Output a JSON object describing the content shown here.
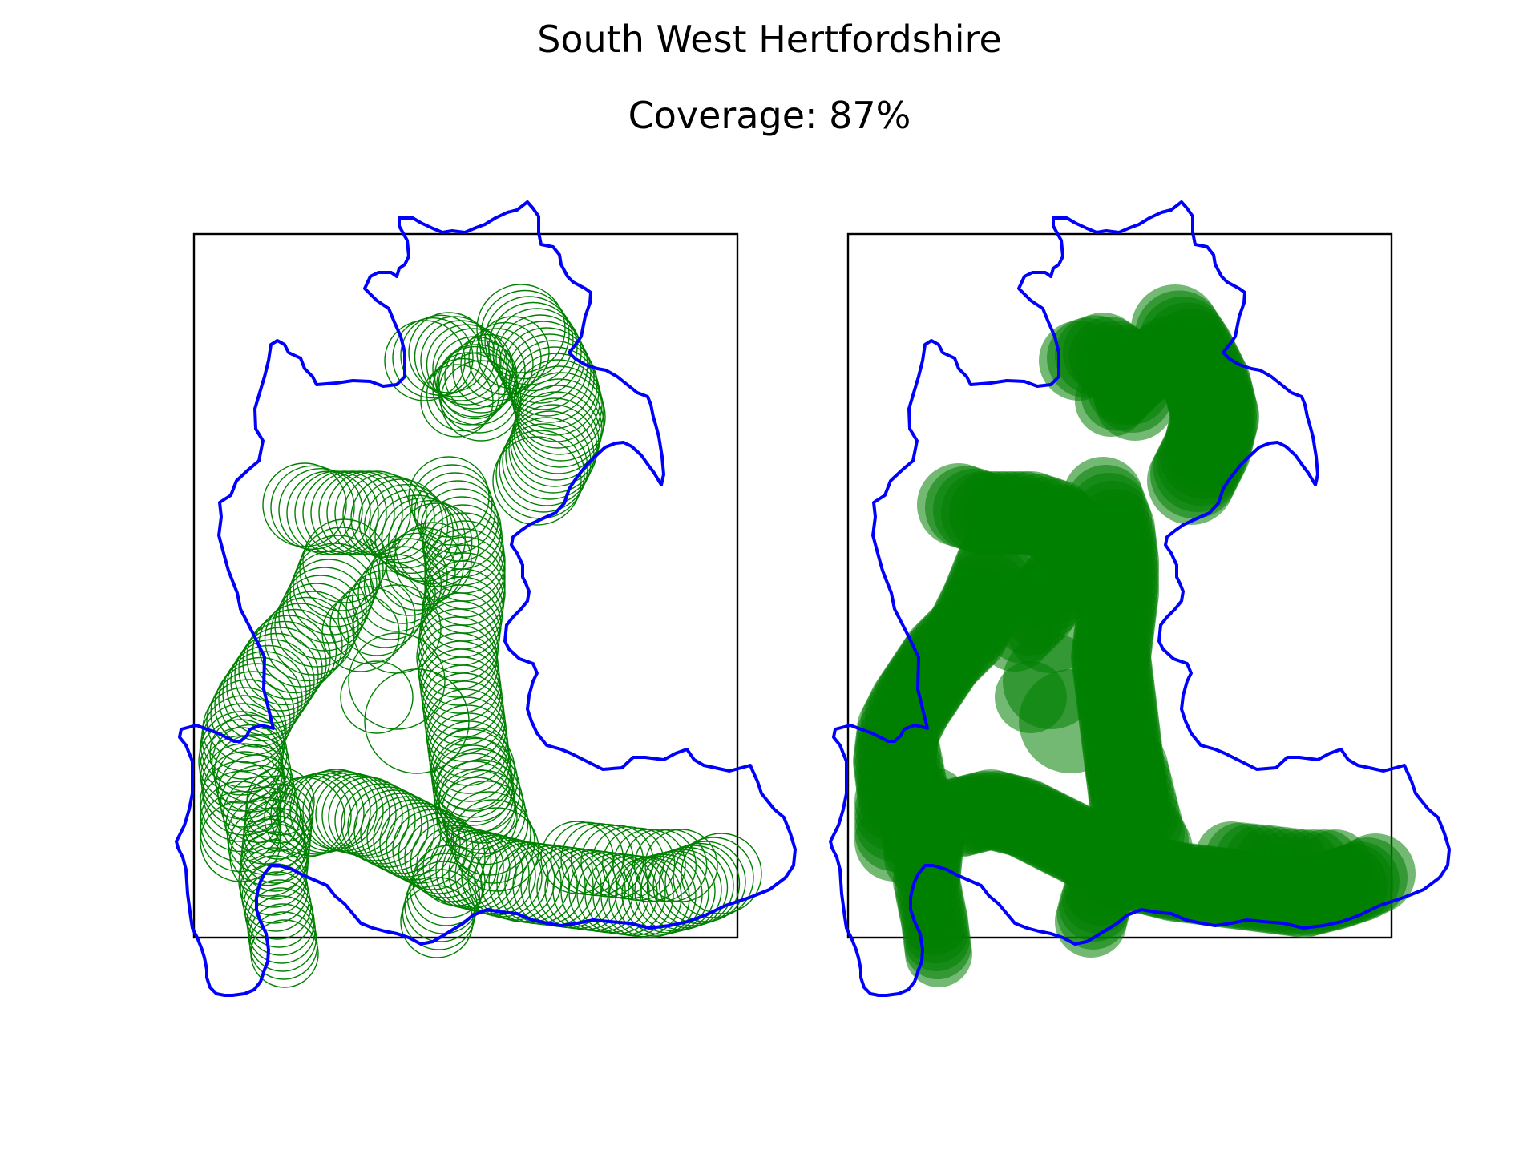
{
  "title": "South West Hertfordshire",
  "subtitle": "Coverage: 87%",
  "colors": {
    "boundary": "#0000ff",
    "circle": "#008000",
    "frame": "#000000",
    "background": "#ffffff"
  },
  "panels": [
    {
      "name": "outline-view",
      "circle_style": "outline"
    },
    {
      "name": "filled-view",
      "circle_style": "filled"
    }
  ]
}
